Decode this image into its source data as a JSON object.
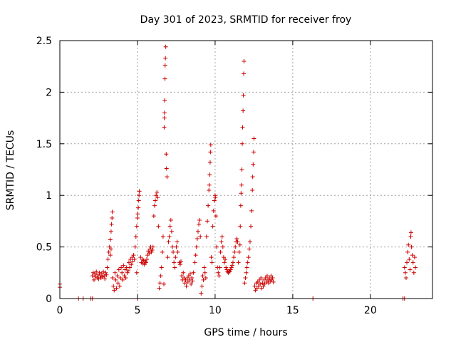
{
  "chart_data": {
    "type": "scatter",
    "title": "Day 301 of 2023, SRMTID for receiver froy",
    "xlabel": "GPS time / hours",
    "ylabel": "SRMTID / TECUs",
    "xlim": [
      0,
      24
    ],
    "ylim": [
      0,
      2.5
    ],
    "x_ticks": [
      0,
      5,
      10,
      15,
      20
    ],
    "x_tick_labels": [
      "0",
      "5",
      "10",
      "15",
      "20"
    ],
    "y_ticks": [
      0,
      0.5,
      1,
      1.5,
      2,
      2.5
    ],
    "y_tick_labels": [
      "0",
      "0.5",
      "1",
      "1.5",
      "2",
      "2.5"
    ],
    "grid": true,
    "marker": "+",
    "colors": {
      "points": "#cc0000",
      "grid": "#a0a0a0",
      "axis": "#000000"
    },
    "series": [
      {
        "name": "SRMTID",
        "points": [
          [
            0.0,
            0.14
          ],
          [
            0.0,
            0.11
          ],
          [
            1.2,
            0.0
          ],
          [
            1.5,
            0.0
          ],
          [
            2.0,
            0.0
          ],
          [
            2.1,
            0.0
          ],
          [
            2.1,
            0.22
          ],
          [
            2.15,
            0.25
          ],
          [
            2.2,
            0.18
          ],
          [
            2.25,
            0.24
          ],
          [
            2.3,
            0.21
          ],
          [
            2.35,
            0.26
          ],
          [
            2.4,
            0.2
          ],
          [
            2.45,
            0.23
          ],
          [
            2.5,
            0.19
          ],
          [
            2.55,
            0.25
          ],
          [
            2.6,
            0.22
          ],
          [
            2.65,
            0.2
          ],
          [
            2.7,
            0.24
          ],
          [
            2.75,
            0.21
          ],
          [
            2.8,
            0.26
          ],
          [
            2.85,
            0.22
          ],
          [
            2.9,
            0.19
          ],
          [
            2.95,
            0.25
          ],
          [
            3.0,
            0.23
          ],
          [
            3.05,
            0.3
          ],
          [
            3.1,
            0.38
          ],
          [
            3.15,
            0.45
          ],
          [
            3.2,
            0.5
          ],
          [
            3.25,
            0.57
          ],
          [
            3.3,
            0.65
          ],
          [
            3.33,
            0.72
          ],
          [
            3.36,
            0.78
          ],
          [
            3.38,
            0.84
          ],
          [
            3.3,
            0.48
          ],
          [
            3.25,
            0.42
          ],
          [
            3.4,
            0.2
          ],
          [
            3.45,
            0.12
          ],
          [
            3.5,
            0.08
          ],
          [
            3.55,
            0.25
          ],
          [
            3.6,
            0.18
          ],
          [
            3.65,
            0.1
          ],
          [
            3.7,
            0.22
          ],
          [
            3.75,
            0.15
          ],
          [
            3.8,
            0.28
          ],
          [
            3.85,
            0.12
          ],
          [
            3.9,
            0.2
          ],
          [
            3.95,
            0.3
          ],
          [
            4.0,
            0.25
          ],
          [
            4.05,
            0.18
          ],
          [
            4.1,
            0.32
          ],
          [
            4.15,
            0.22
          ],
          [
            4.2,
            0.28
          ],
          [
            4.25,
            0.2
          ],
          [
            4.3,
            0.3
          ],
          [
            4.35,
            0.25
          ],
          [
            4.4,
            0.27
          ],
          [
            4.45,
            0.35
          ],
          [
            4.5,
            0.3
          ],
          [
            4.55,
            0.38
          ],
          [
            4.6,
            0.33
          ],
          [
            4.65,
            0.4
          ],
          [
            4.7,
            0.36
          ],
          [
            4.75,
            0.42
          ],
          [
            4.8,
            0.38
          ],
          [
            4.85,
            0.5
          ],
          [
            4.9,
            0.6
          ],
          [
            4.95,
            0.7
          ],
          [
            5.0,
            0.78
          ],
          [
            5.02,
            0.82
          ],
          [
            5.05,
            0.88
          ],
          [
            5.08,
            0.95
          ],
          [
            5.1,
            1.0
          ],
          [
            5.12,
            1.04
          ],
          [
            5.0,
            0.0
          ],
          [
            4.95,
            0.25
          ],
          [
            5.2,
            0.4
          ],
          [
            5.25,
            0.35
          ],
          [
            5.3,
            0.38
          ],
          [
            5.35,
            0.34
          ],
          [
            5.4,
            0.37
          ],
          [
            5.45,
            0.33
          ],
          [
            5.5,
            0.36
          ],
          [
            5.55,
            0.35
          ],
          [
            5.6,
            0.38
          ],
          [
            5.65,
            0.42
          ],
          [
            5.7,
            0.46
          ],
          [
            5.75,
            0.44
          ],
          [
            5.8,
            0.48
          ],
          [
            5.85,
            0.5
          ],
          [
            5.9,
            0.45
          ],
          [
            5.95,
            0.47
          ],
          [
            6.0,
            0.5
          ],
          [
            6.05,
            0.8
          ],
          [
            6.1,
            0.9
          ],
          [
            6.15,
            0.95
          ],
          [
            6.2,
            1.0
          ],
          [
            6.25,
            1.03
          ],
          [
            6.3,
            0.98
          ],
          [
            6.35,
            0.7
          ],
          [
            6.4,
            0.1
          ],
          [
            6.45,
            0.15
          ],
          [
            6.5,
            0.22
          ],
          [
            6.55,
            0.3
          ],
          [
            6.6,
            0.45
          ],
          [
            6.65,
            0.6
          ],
          [
            6.7,
            0.14
          ],
          [
            6.72,
            1.66
          ],
          [
            6.73,
            1.75
          ],
          [
            6.74,
            1.8
          ],
          [
            6.75,
            1.92
          ],
          [
            6.77,
            2.13
          ],
          [
            6.78,
            2.26
          ],
          [
            6.8,
            2.33
          ],
          [
            6.82,
            2.44
          ],
          [
            6.85,
            1.4
          ],
          [
            6.87,
            1.26
          ],
          [
            6.9,
            1.18
          ],
          [
            6.95,
            0.4
          ],
          [
            7.0,
            0.55
          ],
          [
            7.05,
            0.6
          ],
          [
            7.1,
            0.7
          ],
          [
            7.15,
            0.76
          ],
          [
            7.2,
            0.65
          ],
          [
            7.25,
            0.5
          ],
          [
            7.3,
            0.45
          ],
          [
            7.35,
            0.35
          ],
          [
            7.4,
            0.3
          ],
          [
            7.45,
            0.4
          ],
          [
            7.5,
            0.5
          ],
          [
            7.55,
            0.55
          ],
          [
            7.6,
            0.45
          ],
          [
            7.7,
            0.35
          ],
          [
            7.75,
            0.33
          ],
          [
            7.8,
            0.36
          ],
          [
            7.85,
            0.22
          ],
          [
            7.9,
            0.18
          ],
          [
            7.95,
            0.25
          ],
          [
            8.0,
            0.2
          ],
          [
            8.05,
            0.15
          ],
          [
            8.1,
            0.18
          ],
          [
            8.15,
            0.12
          ],
          [
            8.2,
            0.2
          ],
          [
            8.25,
            0.16
          ],
          [
            8.3,
            0.22
          ],
          [
            8.35,
            0.18
          ],
          [
            8.4,
            0.24
          ],
          [
            8.45,
            0.14
          ],
          [
            8.5,
            0.2
          ],
          [
            8.55,
            0.17
          ],
          [
            8.6,
            0.25
          ],
          [
            8.7,
            0.35
          ],
          [
            8.75,
            0.42
          ],
          [
            8.8,
            0.5
          ],
          [
            8.85,
            0.58
          ],
          [
            8.9,
            0.65
          ],
          [
            8.95,
            0.72
          ],
          [
            9.0,
            0.76
          ],
          [
            9.05,
            0.6
          ],
          [
            9.1,
            0.05
          ],
          [
            9.15,
            0.12
          ],
          [
            9.2,
            0.22
          ],
          [
            9.25,
            0.18
          ],
          [
            9.3,
            0.3
          ],
          [
            9.35,
            0.25
          ],
          [
            9.4,
            0.2
          ],
          [
            9.45,
            0.6
          ],
          [
            9.5,
            0.75
          ],
          [
            9.55,
            0.9
          ],
          [
            9.6,
            1.05
          ],
          [
            9.62,
            1.1
          ],
          [
            9.65,
            1.2
          ],
          [
            9.68,
            1.32
          ],
          [
            9.7,
            1.42
          ],
          [
            9.72,
            1.49
          ],
          [
            9.75,
            0.4
          ],
          [
            9.8,
            0.35
          ],
          [
            9.85,
            0.7
          ],
          [
            9.9,
            0.85
          ],
          [
            9.95,
            0.95
          ],
          [
            10.0,
            1.0
          ],
          [
            10.02,
            0.98
          ],
          [
            10.05,
            0.8
          ],
          [
            10.1,
            0.5
          ],
          [
            10.15,
            0.3
          ],
          [
            10.2,
            0.25
          ],
          [
            10.25,
            0.22
          ],
          [
            10.3,
            0.3
          ],
          [
            10.35,
            0.45
          ],
          [
            10.4,
            0.55
          ],
          [
            10.45,
            0.6
          ],
          [
            10.5,
            0.5
          ],
          [
            10.55,
            0.4
          ],
          [
            10.6,
            0.35
          ],
          [
            10.65,
            0.38
          ],
          [
            10.7,
            0.3
          ],
          [
            10.75,
            0.28
          ],
          [
            10.8,
            0.26
          ],
          [
            10.85,
            0.25
          ],
          [
            10.9,
            0.27
          ],
          [
            10.95,
            0.26
          ],
          [
            11.0,
            0.28
          ],
          [
            11.05,
            0.3
          ],
          [
            11.1,
            0.32
          ],
          [
            11.15,
            0.35
          ],
          [
            11.2,
            0.4
          ],
          [
            11.25,
            0.45
          ],
          [
            11.3,
            0.5
          ],
          [
            11.35,
            0.55
          ],
          [
            11.4,
            0.58
          ],
          [
            11.45,
            0.55
          ],
          [
            11.5,
            0.35
          ],
          [
            11.55,
            0.45
          ],
          [
            11.6,
            0.52
          ],
          [
            11.62,
            0.7
          ],
          [
            11.65,
            0.9
          ],
          [
            11.67,
            1.02
          ],
          [
            11.7,
            1.1
          ],
          [
            11.72,
            1.25
          ],
          [
            11.75,
            1.5
          ],
          [
            11.77,
            1.66
          ],
          [
            11.8,
            1.82
          ],
          [
            11.82,
            1.97
          ],
          [
            11.84,
            2.18
          ],
          [
            11.86,
            2.3
          ],
          [
            11.9,
            0.15
          ],
          [
            11.95,
            0.2
          ],
          [
            12.0,
            0.25
          ],
          [
            12.05,
            0.3
          ],
          [
            12.1,
            0.35
          ],
          [
            12.15,
            0.4
          ],
          [
            12.2,
            0.48
          ],
          [
            12.25,
            0.55
          ],
          [
            12.3,
            0.7
          ],
          [
            12.35,
            0.85
          ],
          [
            12.4,
            1.05
          ],
          [
            12.42,
            1.18
          ],
          [
            12.45,
            1.3
          ],
          [
            12.48,
            1.42
          ],
          [
            12.5,
            1.55
          ],
          [
            12.55,
            0.12
          ],
          [
            12.6,
            0.08
          ],
          [
            12.65,
            0.15
          ],
          [
            12.7,
            0.1
          ],
          [
            12.75,
            0.16
          ],
          [
            12.8,
            0.12
          ],
          [
            12.85,
            0.18
          ],
          [
            12.9,
            0.14
          ],
          [
            12.95,
            0.2
          ],
          [
            13.0,
            0.1
          ],
          [
            13.05,
            0.15
          ],
          [
            13.1,
            0.12
          ],
          [
            13.15,
            0.18
          ],
          [
            13.2,
            0.14
          ],
          [
            13.25,
            0.2
          ],
          [
            13.3,
            0.16
          ],
          [
            13.35,
            0.22
          ],
          [
            13.4,
            0.18
          ],
          [
            13.45,
            0.15
          ],
          [
            13.5,
            0.2
          ],
          [
            13.55,
            0.17
          ],
          [
            13.6,
            0.22
          ],
          [
            13.65,
            0.18
          ],
          [
            13.7,
            0.2
          ],
          [
            13.75,
            0.16
          ],
          [
            16.3,
            0.0
          ],
          [
            22.1,
            0.0
          ],
          [
            22.2,
            0.0
          ],
          [
            22.2,
            0.3
          ],
          [
            22.25,
            0.25
          ],
          [
            22.3,
            0.2
          ],
          [
            22.35,
            0.35
          ],
          [
            22.4,
            0.45
          ],
          [
            22.45,
            0.52
          ],
          [
            22.5,
            0.38
          ],
          [
            22.55,
            0.28
          ],
          [
            22.6,
            0.6
          ],
          [
            22.62,
            0.64
          ],
          [
            22.65,
            0.5
          ],
          [
            22.7,
            0.42
          ],
          [
            22.75,
            0.35
          ],
          [
            22.8,
            0.25
          ],
          [
            22.85,
            0.4
          ],
          [
            22.9,
            0.3
          ]
        ]
      }
    ]
  }
}
